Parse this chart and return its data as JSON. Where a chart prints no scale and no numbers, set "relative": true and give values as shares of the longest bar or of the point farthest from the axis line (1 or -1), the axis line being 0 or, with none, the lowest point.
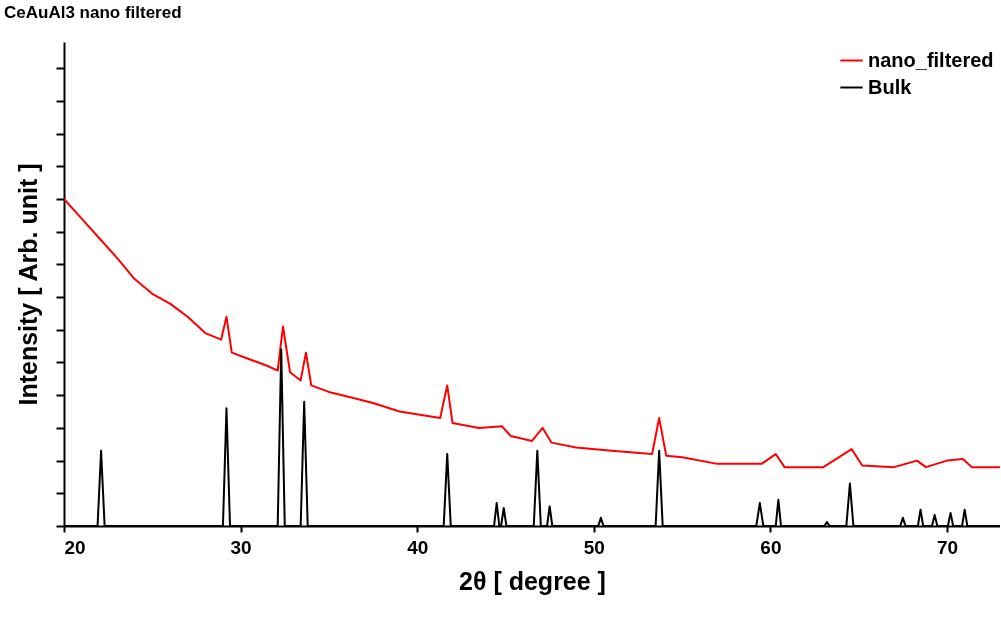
{
  "chart_data": {
    "type": "line",
    "title": "CeAuAl3 nano filtered",
    "xlabel": "2θ [ degree ]",
    "ylabel": "Intensity [ Arb. unit ]",
    "relative": true,
    "xlim": [
      20,
      73
    ],
    "xticks": [
      20,
      30,
      40,
      50,
      60,
      70
    ],
    "legend": "top right",
    "marker": "none",
    "line_style": "solid",
    "grid": false,
    "series": [
      {
        "name": "nano_filtered",
        "color": "#ff0000",
        "x": [
          20,
          21,
          22,
          23,
          24,
          25,
          26,
          26.5,
          27,
          28,
          28.9,
          29.2,
          29.5,
          30.5,
          31.5,
          32.1,
          32.4,
          32.8,
          33.4,
          33.7,
          34.0,
          35,
          36.5,
          37.5,
          39,
          41.3,
          41.7,
          42.0,
          43.5,
          44.8,
          45.3,
          46.5,
          47.1,
          47.6,
          49,
          51,
          53.3,
          53.7,
          54.1,
          55,
          57,
          59.5,
          60.3,
          60.8,
          63,
          64.6,
          65.2,
          67,
          68.3,
          68.8,
          70,
          70.9,
          71.4,
          73
        ],
        "values": [
          1.0,
          0.94,
          0.88,
          0.82,
          0.755,
          0.71,
          0.68,
          0.66,
          0.64,
          0.59,
          0.57,
          0.64,
          0.53,
          0.51,
          0.49,
          0.475,
          0.61,
          0.47,
          0.445,
          0.53,
          0.43,
          0.41,
          0.39,
          0.376,
          0.35,
          0.33,
          0.43,
          0.315,
          0.3,
          0.305,
          0.275,
          0.26,
          0.3,
          0.255,
          0.24,
          0.23,
          0.22,
          0.33,
          0.215,
          0.21,
          0.19,
          0.19,
          0.22,
          0.18,
          0.18,
          0.235,
          0.185,
          0.18,
          0.2,
          0.18,
          0.2,
          0.205,
          0.18,
          0.18
        ]
      },
      {
        "name": "Bulk",
        "color": "#000000",
        "x": [
          20,
          21.9,
          22.1,
          22.3,
          29.0,
          29.2,
          29.4,
          32.1,
          32.3,
          32.5,
          33.4,
          33.6,
          33.8,
          41.5,
          41.7,
          41.9,
          44.35,
          44.5,
          44.65,
          44.75,
          44.9,
          45.05,
          46.6,
          46.8,
          47.0,
          47.35,
          47.5,
          47.65,
          50.25,
          50.4,
          50.55,
          53.5,
          53.7,
          53.9,
          59.2,
          59.4,
          59.6,
          60.3,
          60.45,
          60.6,
          63.05,
          63.2,
          63.35,
          64.3,
          64.5,
          64.7,
          67.35,
          67.5,
          67.65,
          68.35,
          68.5,
          68.65,
          69.15,
          69.3,
          69.45,
          70.05,
          70.2,
          70.35,
          70.85,
          71.0,
          71.15,
          73
        ],
        "values": [
          0,
          0,
          0.23,
          0,
          0,
          0.36,
          0,
          0,
          0.54,
          0,
          0,
          0.38,
          0,
          0,
          0.22,
          0,
          0,
          0.07,
          0,
          0,
          0.055,
          0,
          0,
          0.23,
          0,
          0,
          0.06,
          0,
          0,
          0.025,
          0,
          0,
          0.23,
          0,
          0,
          0.07,
          0,
          0,
          0.08,
          0,
          0,
          0.012,
          0,
          0,
          0.13,
          0,
          0,
          0.025,
          0,
          0,
          0.05,
          0,
          0,
          0.034,
          0,
          0,
          0.04,
          0,
          0,
          0.05,
          0,
          0
        ]
      }
    ]
  }
}
